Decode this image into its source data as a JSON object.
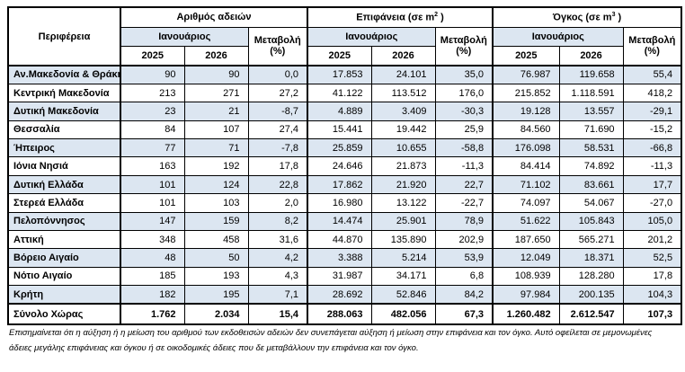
{
  "table": {
    "region_header": "Περιφέρεια",
    "month_label": "Ιανουάριος",
    "years": [
      "2025",
      "2026"
    ],
    "change_label": "Μεταβολή",
    "change_unit": "(%)",
    "groups": [
      {
        "title_pre": "Αριθμός αδειών",
        "title_sup": "",
        "title_post": ""
      },
      {
        "title_pre": "Επιφάνεια (σε m",
        "title_sup": "2",
        "title_post": " )"
      },
      {
        "title_pre": "Όγκος (σε m",
        "title_sup": "3",
        "title_post": " )"
      }
    ],
    "rows": [
      {
        "region": "Αν.Μακεδονία & Θράκη",
        "values": [
          "90",
          "90",
          "0,0",
          "17.853",
          "24.101",
          "35,0",
          "76.987",
          "119.658",
          "55,4"
        ]
      },
      {
        "region": "Κεντρική Μακεδονία",
        "values": [
          "213",
          "271",
          "27,2",
          "41.122",
          "113.512",
          "176,0",
          "215.852",
          "1.118.591",
          "418,2"
        ]
      },
      {
        "region": "Δυτική Μακεδονία",
        "values": [
          "23",
          "21",
          "-8,7",
          "4.889",
          "3.409",
          "-30,3",
          "19.128",
          "13.557",
          "-29,1"
        ]
      },
      {
        "region": "Θεσσαλία",
        "values": [
          "84",
          "107",
          "27,4",
          "15.441",
          "19.442",
          "25,9",
          "84.560",
          "71.690",
          "-15,2"
        ]
      },
      {
        "region": "Ήπειρος",
        "values": [
          "77",
          "71",
          "-7,8",
          "25.859",
          "10.655",
          "-58,8",
          "176.098",
          "58.531",
          "-66,8"
        ]
      },
      {
        "region": "Ιόνια Νησιά",
        "values": [
          "163",
          "192",
          "17,8",
          "24.646",
          "21.873",
          "-11,3",
          "84.414",
          "74.892",
          "-11,3"
        ]
      },
      {
        "region": "Δυτική Ελλάδα",
        "values": [
          "101",
          "124",
          "22,8",
          "17.862",
          "21.920",
          "22,7",
          "71.102",
          "83.661",
          "17,7"
        ]
      },
      {
        "region": "Στερεά Ελλάδα",
        "values": [
          "101",
          "103",
          "2,0",
          "16.980",
          "13.122",
          "-22,7",
          "74.097",
          "54.067",
          "-27,0"
        ]
      },
      {
        "region": "Πελοπόννησος",
        "values": [
          "147",
          "159",
          "8,2",
          "14.474",
          "25.901",
          "78,9",
          "51.622",
          "105.843",
          "105,0"
        ]
      },
      {
        "region": "Αττική",
        "values": [
          "348",
          "458",
          "31,6",
          "44.870",
          "135.890",
          "202,9",
          "187.650",
          "565.271",
          "201,2"
        ]
      },
      {
        "region": "Βόρειο Αιγαίο",
        "values": [
          "48",
          "50",
          "4,2",
          "3.388",
          "5.214",
          "53,9",
          "12.049",
          "18.371",
          "52,5"
        ]
      },
      {
        "region": "Νότιο Αιγαίο",
        "values": [
          "185",
          "193",
          "4,3",
          "31.987",
          "34.171",
          "6,8",
          "108.939",
          "128.280",
          "17,8"
        ]
      },
      {
        "region": "Κρήτη",
        "values": [
          "182",
          "195",
          "7,1",
          "28.692",
          "52.846",
          "84,2",
          "97.984",
          "200.135",
          "104,3"
        ]
      }
    ],
    "total": {
      "region": "Σύνολο Χώρας",
      "values": [
        "1.762",
        "2.034",
        "15,4",
        "288.063",
        "482.056",
        "67,3",
        "1.260.482",
        "2.612.547",
        "107,3"
      ]
    }
  },
  "footnote": "Επισημαίνεται ότι η αύξηση ή η μείωση του αριθμού των εκδοθεισών αδειών δεν συνεπάγεται αύξηση ή μείωση στην επιφάνεια και τον όγκο. Αυτό οφείλεται σε μεμονωμένες άδειες μεγάλης επιφάνειας και όγκου ή σε οικοδομικές άδειες που δε μεταβάλλουν την επιφάνεια και τον όγκο.",
  "colors": {
    "stripe_blue": "#DCE6F1",
    "border": "#000000",
    "text": "#000000"
  }
}
